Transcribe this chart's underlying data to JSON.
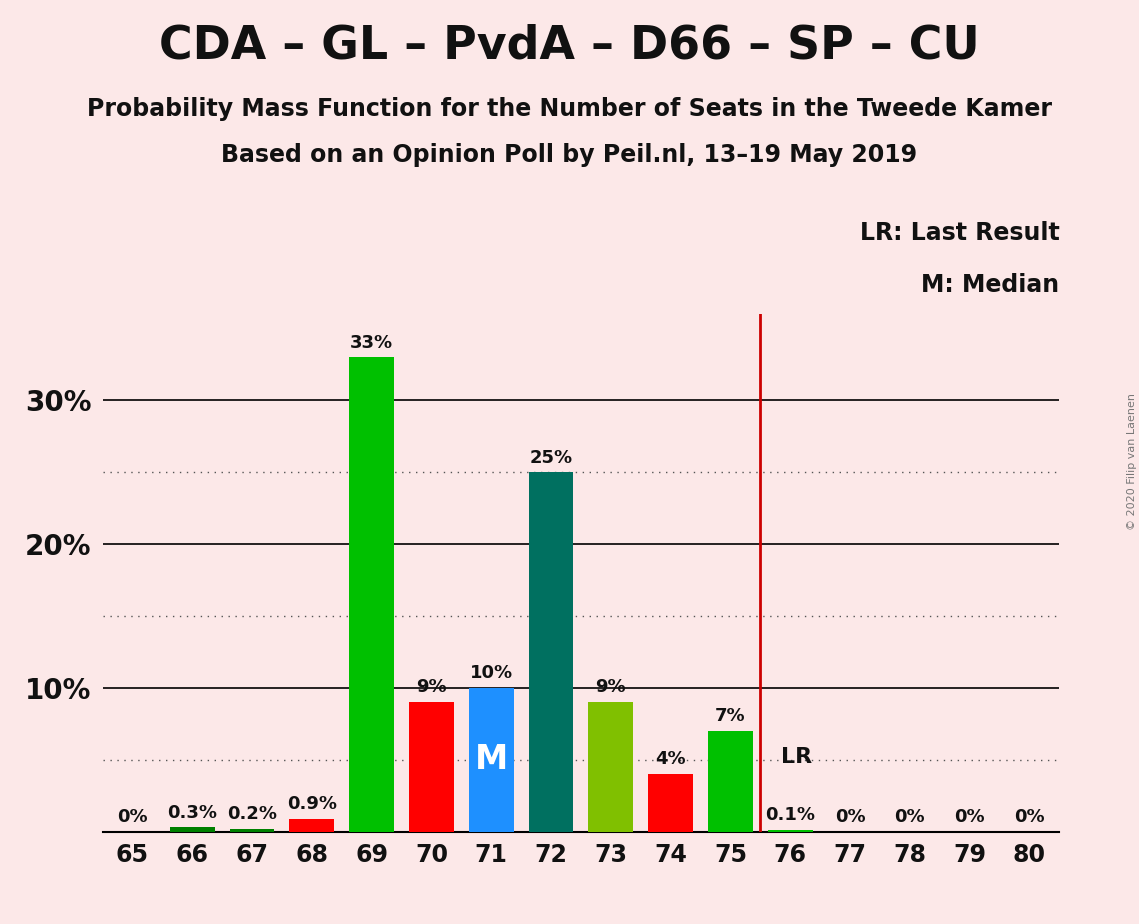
{
  "title": "CDA – GL – PvdA – D66 – SP – CU",
  "subtitle1": "Probability Mass Function for the Number of Seats in the Tweede Kamer",
  "subtitle2": "Based on an Opinion Poll by Peil.nl, 13–19 May 2019",
  "copyright": "© 2020 Filip van Laenen",
  "seats": [
    65,
    66,
    67,
    68,
    69,
    70,
    71,
    72,
    73,
    74,
    75,
    76,
    77,
    78,
    79,
    80
  ],
  "probabilities": [
    0.0,
    0.3,
    0.2,
    0.9,
    33.0,
    9.0,
    10.0,
    25.0,
    9.0,
    4.0,
    7.0,
    0.1,
    0.0,
    0.0,
    0.0,
    0.0
  ],
  "bar_colors": [
    "#008000",
    "#008000",
    "#008000",
    "#ff0000",
    "#00c000",
    "#ff0000",
    "#1e90ff",
    "#007060",
    "#80c000",
    "#ff0000",
    "#00c000",
    "#00c000",
    "#00c000",
    "#00c000",
    "#00c000",
    "#00c000"
  ],
  "median_seat": 71,
  "lr_seat": 76,
  "background_color": "#fce8e8",
  "lr_line_color": "#cc0000",
  "annotation_color": "#111111",
  "legend_lr": "LR: Last Result",
  "legend_m": "M: Median",
  "median_label": "M",
  "lr_label": "LR",
  "ylim": [
    0,
    36
  ],
  "dotted_yticks": [
    5,
    15,
    25
  ],
  "solid_yticks": [
    10,
    20,
    30
  ],
  "shown_yticks": [
    10,
    20,
    30
  ],
  "shown_ytick_labels": [
    "10%",
    "20%",
    "30%"
  ]
}
